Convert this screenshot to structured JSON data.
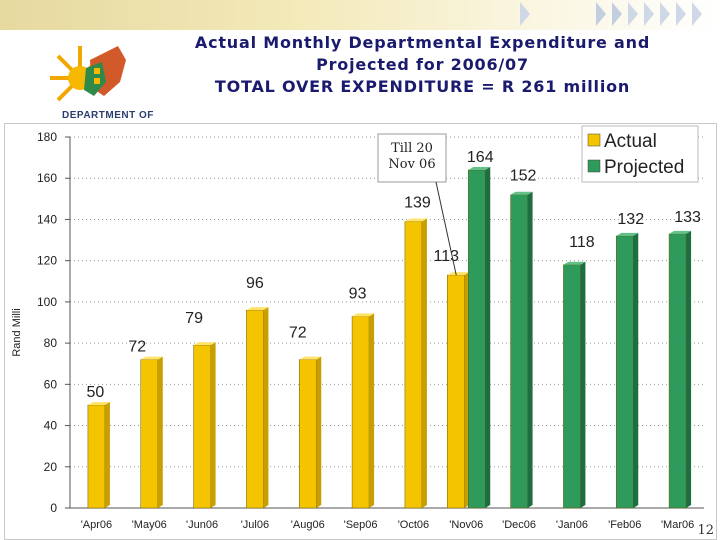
{
  "header": {
    "department_text": "DEPARTMENT OF",
    "title_lines": [
      "Actual Monthly Departmental Expenditure and",
      "Projected for 2006/07",
      "TOTAL OVER EXPENDITURE = R 261 million"
    ]
  },
  "chart_data": {
    "type": "bar",
    "ylabel": "Rand Milli",
    "ylim": [
      0,
      180
    ],
    "yticks": [
      0,
      20,
      40,
      60,
      80,
      100,
      120,
      140,
      160,
      180
    ],
    "categories": [
      "'Apr06",
      "'May06",
      "'Jun06",
      "'Jul06",
      "'Aug06",
      "'Sep06",
      "'Oct06",
      "'Nov06",
      "'Dec06",
      "'Jan06",
      "'Feb06",
      "'Mar06"
    ],
    "series": [
      {
        "name": "Actual",
        "color": "#f5c400",
        "values": [
          50,
          72,
          79,
          96,
          72,
          93,
          139,
          113,
          null,
          null,
          null,
          null
        ]
      },
      {
        "name": "Projected",
        "color": "#2e9a5c",
        "values": [
          null,
          null,
          null,
          null,
          null,
          null,
          null,
          164,
          152,
          118,
          132,
          133
        ]
      }
    ],
    "data_labels": [
      "50",
      "72",
      "79",
      "96",
      "72",
      "93",
      "139",
      "113",
      "164",
      "152",
      "118",
      "132",
      "133"
    ],
    "annotation": {
      "text_lines": [
        "Till 20",
        "Nov 06"
      ],
      "category": "'Nov06",
      "series": "Actual"
    },
    "legend": {
      "position": "top-right",
      "entries": [
        "Actual",
        "Projected"
      ]
    }
  },
  "footer": {
    "page_number": "12"
  }
}
